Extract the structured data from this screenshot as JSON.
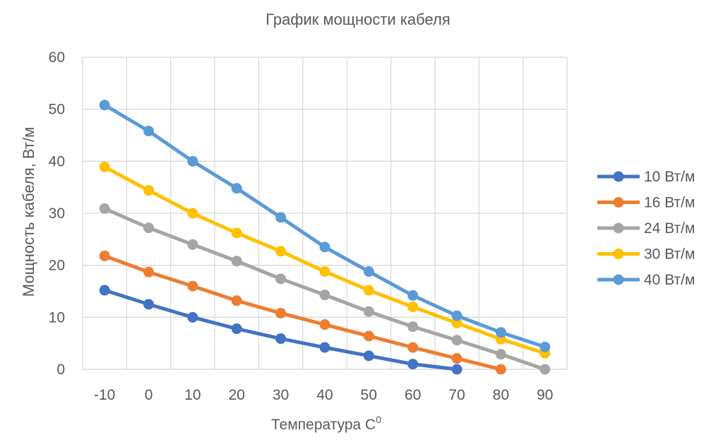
{
  "chart_data": {
    "type": "line",
    "title": "График мощности кабеля",
    "xlabel": "Температура С",
    "xlabel_superscript": "0",
    "ylabel": "Мощность кабеля, Вт/м",
    "categories": [
      "-10",
      "0",
      "10",
      "20",
      "30",
      "40",
      "50",
      "60",
      "70",
      "80",
      "90"
    ],
    "ylim": [
      0,
      60
    ],
    "yticks": [
      0,
      10,
      20,
      30,
      40,
      50,
      60
    ],
    "grid": true,
    "legend_position": "right",
    "series": [
      {
        "name": "10 Вт/м",
        "color": "#4472C4",
        "values": [
          15.2,
          12.5,
          10.0,
          7.8,
          5.9,
          4.2,
          2.6,
          1.0,
          0.0,
          null,
          null
        ]
      },
      {
        "name": "16 Вт/м",
        "color": "#ED7D31",
        "values": [
          21.8,
          18.7,
          16.0,
          13.2,
          10.8,
          8.6,
          6.4,
          4.2,
          2.1,
          0.0,
          null
        ]
      },
      {
        "name": "24 Вт/м",
        "color": "#A5A5A5",
        "values": [
          30.9,
          27.2,
          24.0,
          20.8,
          17.4,
          14.3,
          11.1,
          8.2,
          5.6,
          2.9,
          0.0
        ]
      },
      {
        "name": "30 Вт/м",
        "color": "#FFC000",
        "values": [
          38.9,
          34.4,
          30.0,
          26.2,
          22.7,
          18.8,
          15.2,
          12.0,
          8.9,
          5.8,
          3.1
        ]
      },
      {
        "name": "40 Вт/м",
        "color": "#5B9BD5",
        "values": [
          50.8,
          45.8,
          40.0,
          34.8,
          29.2,
          23.5,
          18.8,
          14.2,
          10.3,
          7.1,
          4.3
        ]
      }
    ]
  }
}
